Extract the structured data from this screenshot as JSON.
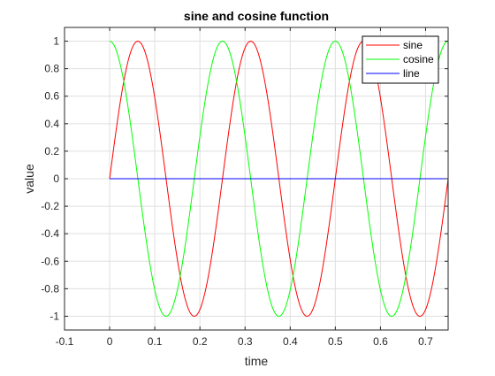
{
  "chart_data": {
    "type": "line",
    "title": "sine and cosine function",
    "xlabel": "time",
    "ylabel": "value",
    "xlim": [
      -0.1,
      0.75
    ],
    "ylim": [
      -1.1,
      1.1
    ],
    "xticks": [
      -0.1,
      0,
      0.1,
      0.2,
      0.3,
      0.4,
      0.5,
      0.6,
      0.7
    ],
    "xtick_labels": [
      "-0.1",
      "0",
      "0.1",
      "0.2",
      "0.3",
      "0.4",
      "0.5",
      "0.6",
      "0.7"
    ],
    "yticks": [
      -1,
      -0.8,
      -0.6,
      -0.4,
      -0.2,
      0,
      0.2,
      0.4,
      0.6,
      0.8,
      1
    ],
    "ytick_labels": [
      "-1",
      "-0.8",
      "-0.6",
      "-0.4",
      "-0.2",
      "0",
      "0.2",
      "0.4",
      "0.6",
      "0.8",
      "1"
    ],
    "grid": true,
    "legend_position": "top-right",
    "frequency": 4,
    "x_range": [
      0,
      0.75
    ],
    "series": [
      {
        "name": "sine",
        "color": "#ff0000",
        "function": "sin(2*pi*4*t)"
      },
      {
        "name": "cosine",
        "color": "#00ff00",
        "function": "cos(2*pi*4*t)"
      },
      {
        "name": "line",
        "color": "#0000ff",
        "function": "0"
      }
    ]
  }
}
